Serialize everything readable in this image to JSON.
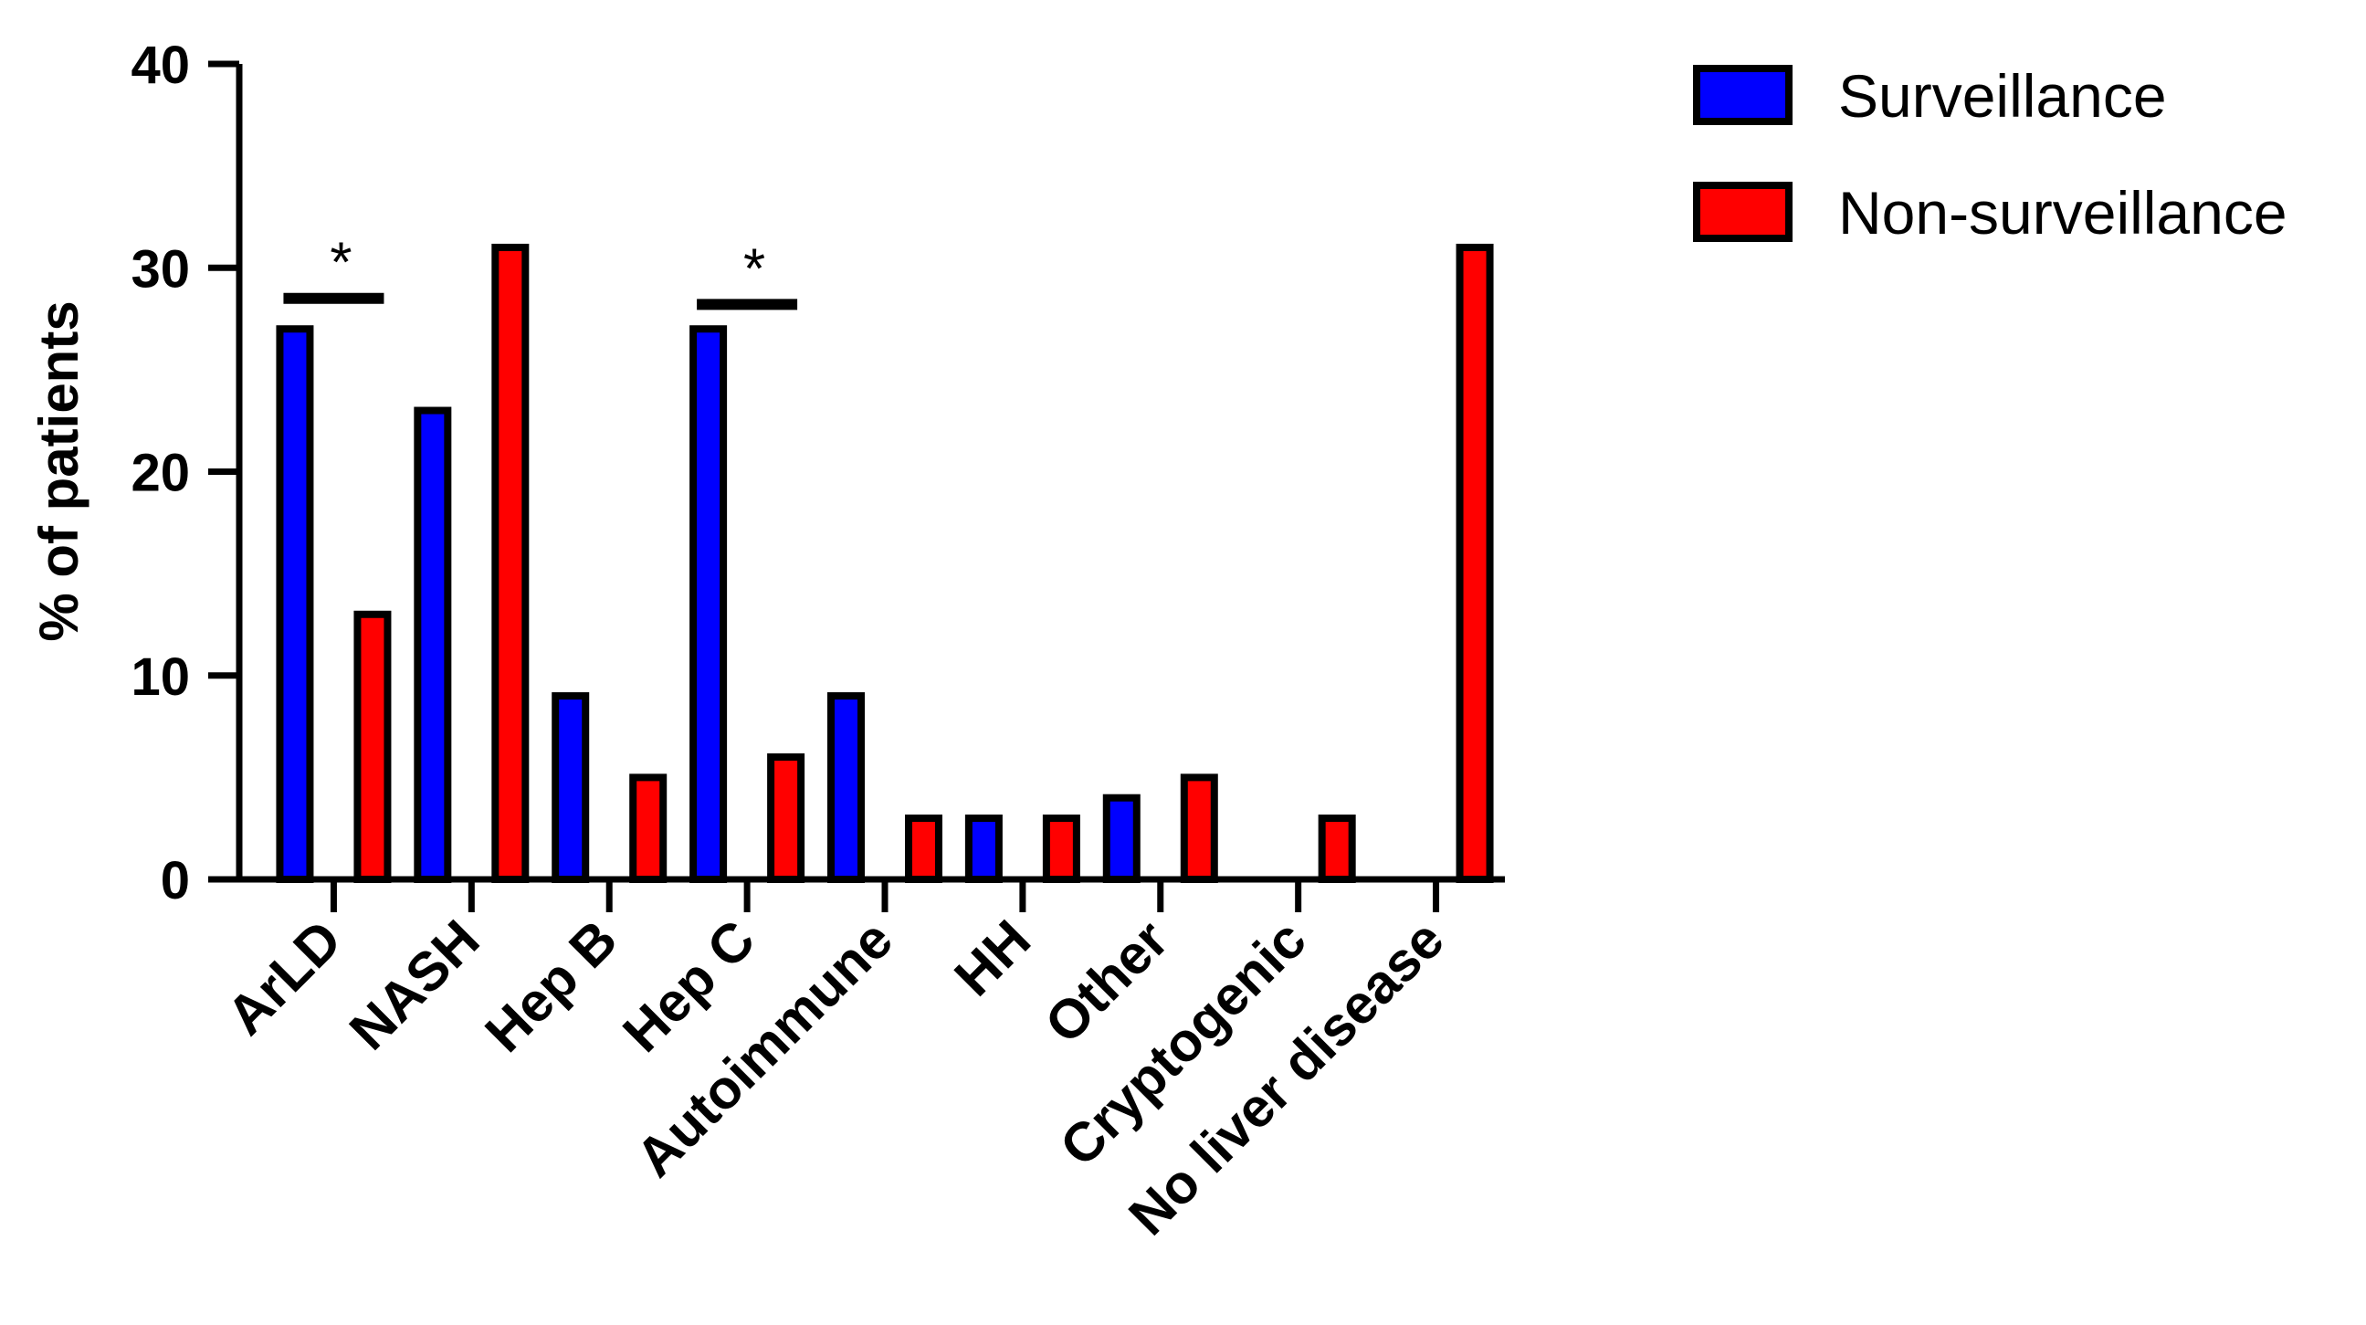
{
  "chart_data": {
    "type": "bar",
    "title": "",
    "xlabel": "",
    "ylabel": "% of patients",
    "ylim": [
      0,
      40
    ],
    "yticks": [
      0,
      10,
      20,
      30,
      40
    ],
    "categories": [
      "ArLD",
      "NASH",
      "Hep B",
      "Hep C",
      "Autoimmune",
      "HH",
      "Other",
      "Cryptogenic",
      "No liver disease"
    ],
    "series": [
      {
        "name": "Surveillance",
        "color": "#0000ff",
        "values": [
          27,
          23,
          9,
          27,
          9,
          3,
          4,
          0,
          0
        ]
      },
      {
        "name": "Non-surveillance",
        "color": "#ff0000",
        "values": [
          13,
          31,
          5,
          6,
          3,
          3,
          5,
          3,
          31
        ]
      }
    ],
    "significance": [
      {
        "category_index": 0,
        "label": "*",
        "y": 28.5
      },
      {
        "category_index": 3,
        "label": "*",
        "y": 28.2
      }
    ],
    "legend": "top-right",
    "grid": false
  }
}
